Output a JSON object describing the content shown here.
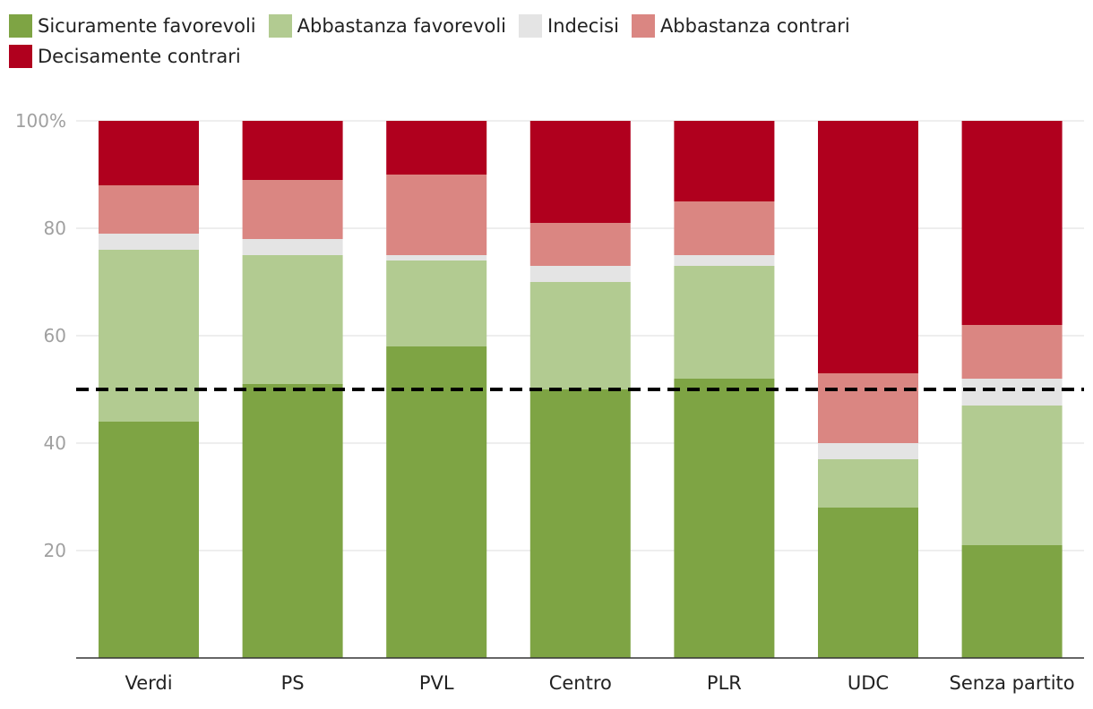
{
  "chart_data": {
    "type": "bar",
    "stacked": true,
    "categories": [
      "Verdi",
      "PS",
      "PVL",
      "Centro",
      "PLR",
      "UDC",
      "Senza partito"
    ],
    "series": [
      {
        "name": "Sicuramente favorevoli",
        "color": "#7ea444",
        "values": [
          44,
          51,
          58,
          50,
          52,
          28,
          21
        ]
      },
      {
        "name": "Abbastanza favorevoli",
        "color": "#b2cb91",
        "values": [
          32,
          24,
          16,
          20,
          21,
          9,
          26
        ]
      },
      {
        "name": "Indecisi",
        "color": "#e4e4e4",
        "values": [
          3,
          3,
          1,
          3,
          2,
          3,
          5
        ]
      },
      {
        "name": "Abbastanza contrari",
        "color": "#da8682",
        "values": [
          9,
          11,
          15,
          8,
          10,
          13,
          10
        ]
      },
      {
        "name": "Decisamente contrari",
        "color": "#b0001e",
        "values": [
          12,
          11,
          10,
          19,
          15,
          47,
          38
        ]
      }
    ],
    "ylim": [
      0,
      100
    ],
    "yticks": [
      20,
      40,
      60,
      80,
      100
    ],
    "ytick_labels": [
      "20",
      "40",
      "60",
      "80",
      "100%"
    ],
    "reference_line": 50,
    "title": "",
    "xlabel": "",
    "ylabel": ""
  }
}
